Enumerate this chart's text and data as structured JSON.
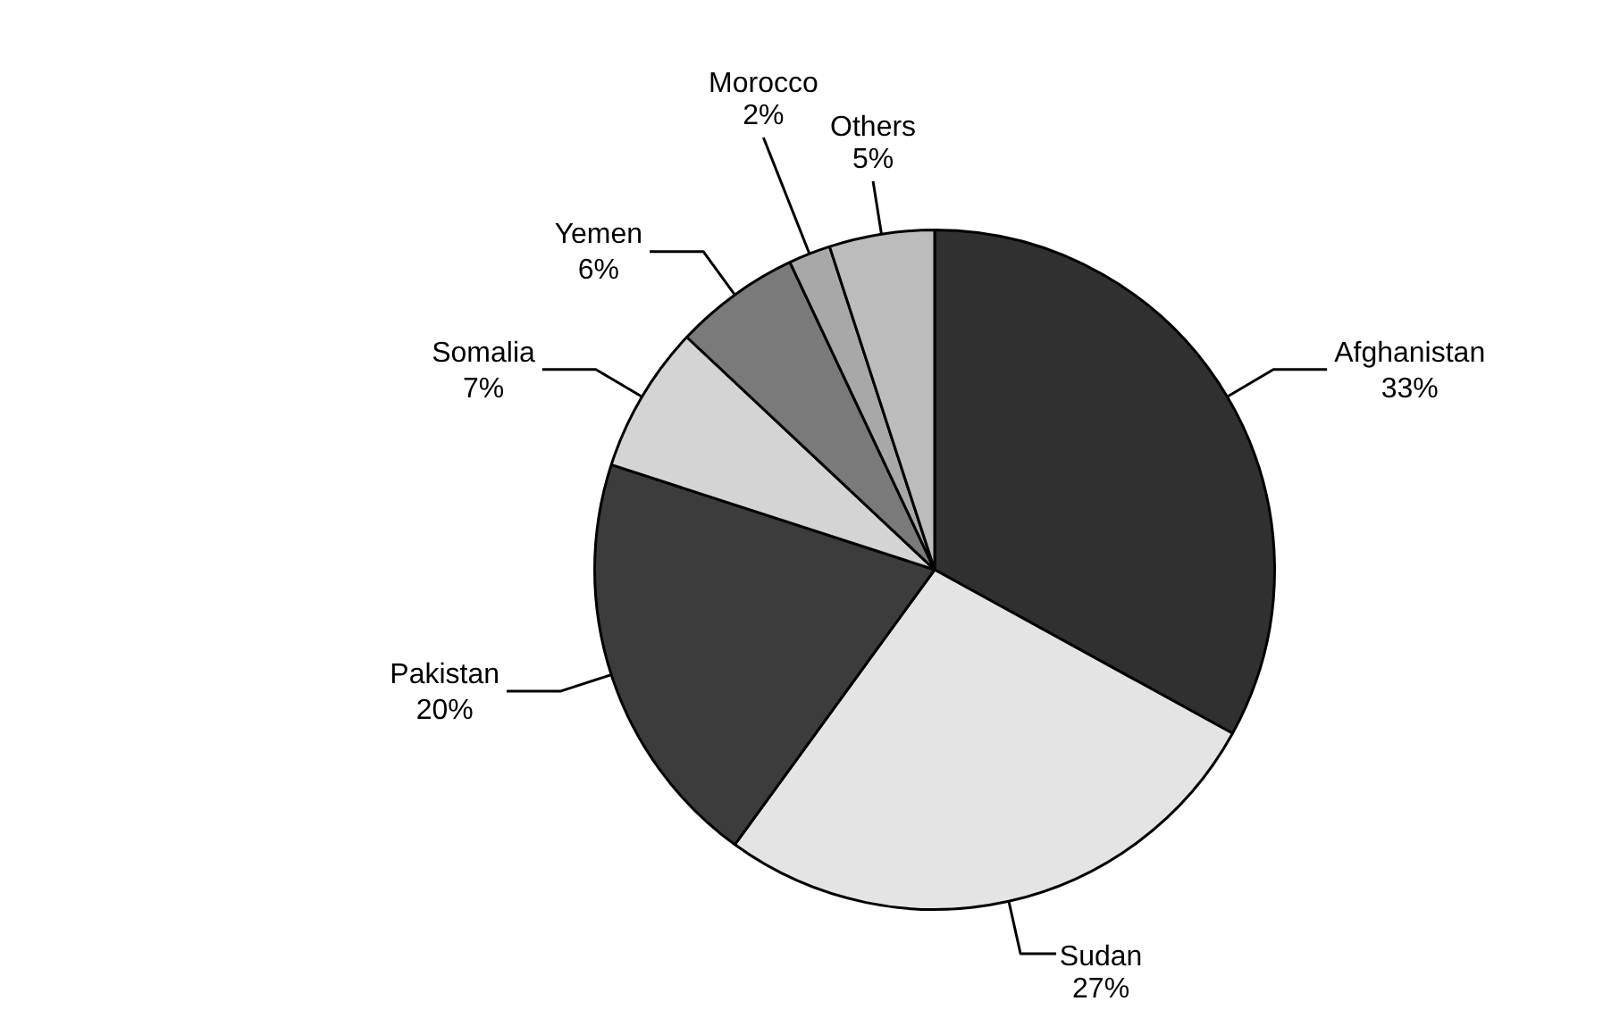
{
  "chart_data": {
    "type": "pie",
    "categories": [
      "Afghanistan",
      "Sudan",
      "Pakistan",
      "Somalia",
      "Yemen",
      "Morocco",
      "Others"
    ],
    "values": [
      33,
      27,
      20,
      7,
      6,
      2,
      5
    ],
    "value_labels": [
      "33%",
      "27%",
      "20%",
      "7%",
      "6%",
      "2%",
      "5%"
    ],
    "colors": [
      "#303030",
      "#e4e4e4",
      "#3c3c3c",
      "#d4d4d4",
      "#7a7a7a",
      "#a8a8a8",
      "#bcbcbc"
    ]
  }
}
